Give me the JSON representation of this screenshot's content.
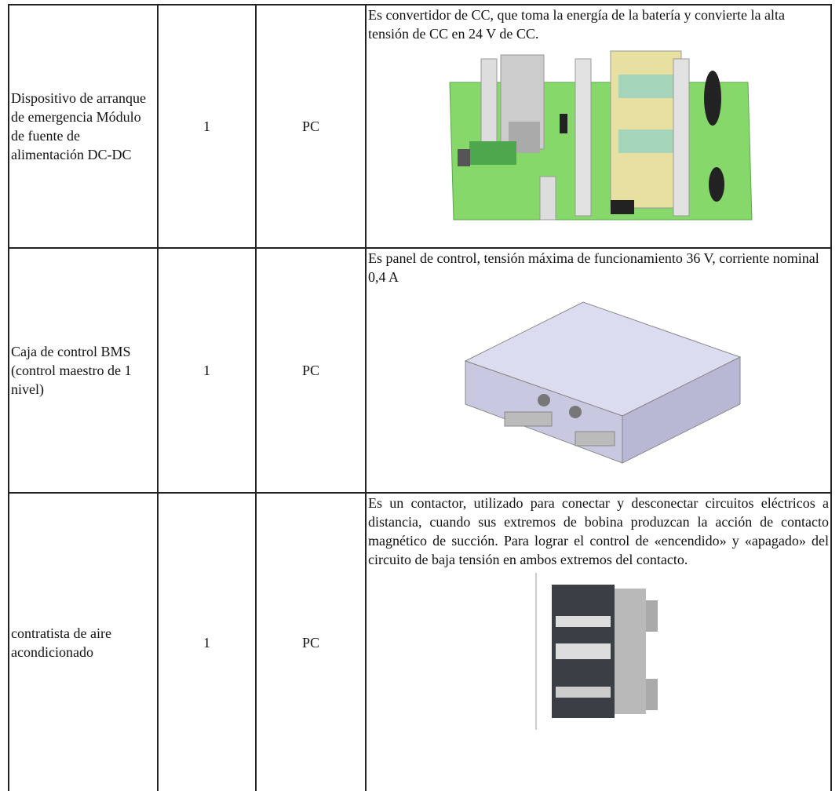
{
  "table": {
    "rows": [
      [
        "Dispositivo de arranque de emergencia Módulo de fuente de alimentación DC-DC",
        "1",
        "PC",
        "Es convertidor de CC, que toma la energía de la batería y convierte la alta tensión de CC en 24 V de CC."
      ],
      [
        "Caja de control BMS (control maestro de 1 nivel)",
        "1",
        "PC",
        "Es panel de control, tensión máxima de funcionamiento 36 V, corriente nominal 0,4 A"
      ],
      [
        "contratista de aire acondicionado",
        "1",
        "PC",
        "Es un contactor, utilizado para conectar y desconectar circuitos eléctricos a distancia, cuando sus extremos de bobina produzcan la acción de contacto magnético de succión. Para lograr el control de «encendido» y «apagado» del circuito de baja tensión en ambos extremos del contacto."
      ]
    ]
  }
}
